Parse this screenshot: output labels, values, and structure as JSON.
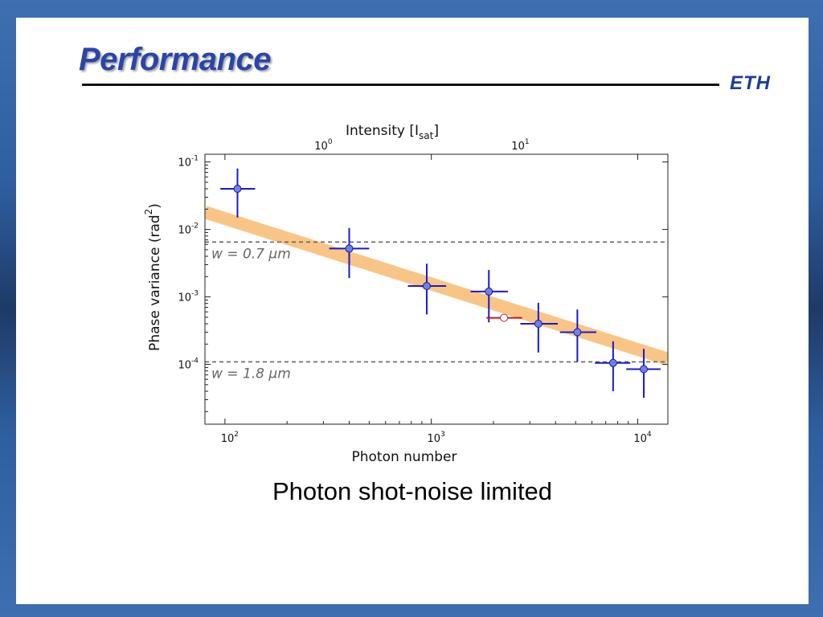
{
  "slide": {
    "title": "Performance",
    "logo_text": "ETH",
    "caption": "Photon shot-noise limited"
  },
  "colors": {
    "title": "#2a45a8",
    "marker_face": "#6f7ff0",
    "errorbar": "#1a1acc",
    "red_errorbar": "#cc1111",
    "band": "#f9bf7a"
  },
  "chart_data": {
    "type": "scatter",
    "xlabel": "Photon number",
    "ylabel": "Phase variance (rad",
    "ylabel_sup": "2",
    "ylabel_close": ")",
    "top_xlabel": "Intensity [I",
    "top_xlabel_sub": "sat",
    "top_xlabel_close": "]",
    "x_scale": "log",
    "y_scale": "log",
    "xlim": [
      80,
      14000
    ],
    "ylim": [
      1.3e-05,
      0.13
    ],
    "x_ticks": [
      {
        "value": 100,
        "base": "10",
        "exp": "2"
      },
      {
        "value": 1000,
        "base": "10",
        "exp": "3"
      },
      {
        "value": 10000,
        "base": "10",
        "exp": "4"
      }
    ],
    "y_ticks": [
      {
        "value": 0.1,
        "base": "10",
        "exp": "-1"
      },
      {
        "value": 0.01,
        "base": "10",
        "exp": "-2"
      },
      {
        "value": 0.001,
        "base": "10",
        "exp": "-3"
      },
      {
        "value": 0.0001,
        "base": "10",
        "exp": "-4"
      }
    ],
    "top_ticks": [
      {
        "photon_value": 300,
        "base": "10",
        "exp": "0"
      },
      {
        "photon_value": 2700,
        "base": "10",
        "exp": "1"
      }
    ],
    "series": [
      {
        "marker": "filled",
        "points": [
          {
            "x": 115,
            "y": 0.04,
            "xerr": [
              95,
              140
            ],
            "yerr": [
              0.015,
              0.08
            ]
          },
          {
            "x": 400,
            "y": 0.0052,
            "xerr": [
              320,
              500
            ],
            "yerr": [
              0.0019,
              0.0105
            ]
          },
          {
            "x": 950,
            "y": 0.00145,
            "xerr": [
              770,
              1180
            ],
            "yerr": [
              0.00055,
              0.0031
            ]
          },
          {
            "x": 1900,
            "y": 0.0012,
            "xerr": [
              1550,
              2350
            ],
            "yerr": [
              0.00042,
              0.0025
            ]
          },
          {
            "x": 3300,
            "y": 0.0004,
            "xerr": [
              2700,
              4100
            ],
            "yerr": [
              0.00015,
              0.00082
            ]
          },
          {
            "x": 5100,
            "y": 0.0003,
            "xerr": [
              4200,
              6300
            ],
            "yerr": [
              0.00011,
              0.00065
            ]
          },
          {
            "x": 7600,
            "y": 0.000105,
            "xerr": [
              6200,
              9200
            ],
            "yerr": [
              4e-05,
              0.00022
            ]
          },
          {
            "x": 10700,
            "y": 8.5e-05,
            "xerr": [
              8800,
              12900
            ],
            "yerr": [
              3.2e-05,
              0.00017
            ]
          }
        ]
      },
      {
        "marker": "open",
        "points": [
          {
            "x": 2250,
            "y": 0.00049,
            "xerr": [
              1850,
              2750
            ],
            "yerr": [
              0.00049,
              0.00049
            ]
          }
        ]
      }
    ],
    "band": {
      "x_start": 80,
      "y_start": 0.018,
      "x_end": 14000,
      "y_end": 0.00012
    },
    "hlines": [
      {
        "y": 0.0065,
        "label": "w = 0.7 μm"
      },
      {
        "y": 0.000109,
        "label": "w = 1.8 μm"
      }
    ]
  }
}
